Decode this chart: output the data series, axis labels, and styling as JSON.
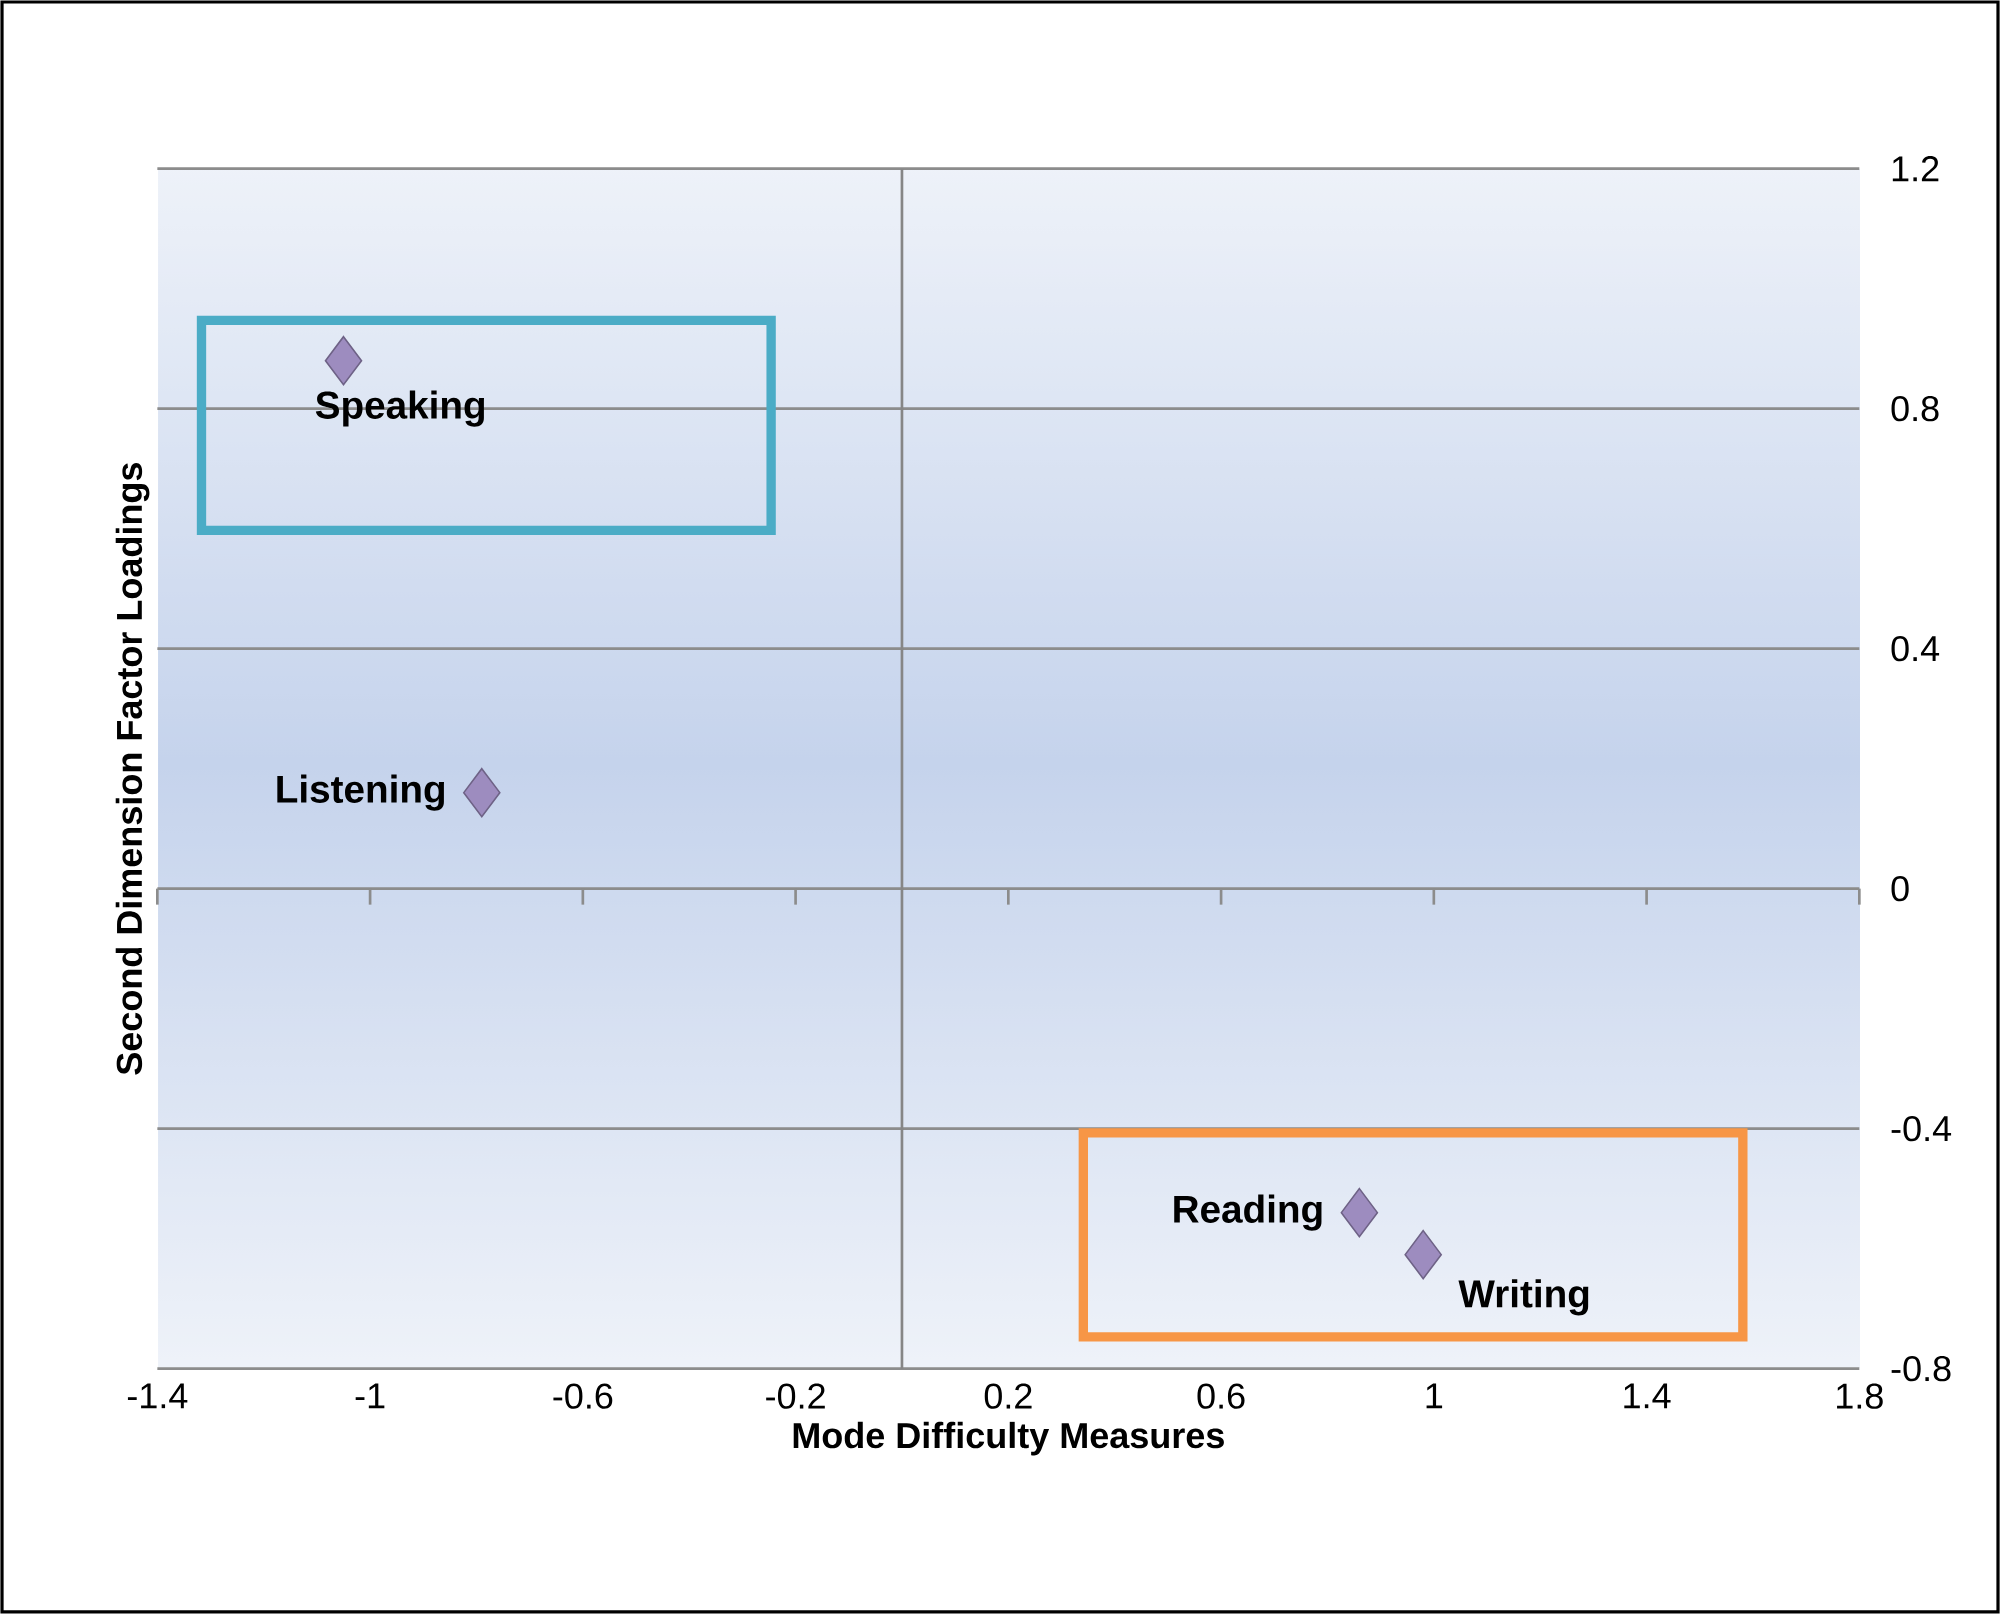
{
  "chart_data": {
    "type": "scatter",
    "xlabel": "Mode Difficulty Measures",
    "ylabel": "Second Dimension Factor Loadings",
    "x": [
      -1.05,
      -0.79,
      0.86,
      0.98
    ],
    "series": [
      {
        "color": "#9d8cbf",
        "values": [
          0.88,
          0.16,
          -0.54,
          -0.61
        ]
      }
    ],
    "marker": "diamond",
    "xlim": [
      -1.4,
      1.8
    ],
    "ylim": [
      -0.8,
      1.2
    ],
    "xticks": [
      -1.4,
      -1,
      -0.6,
      -0.2,
      0.2,
      0.6,
      1,
      1.4,
      1.8
    ],
    "yticks": [
      -0.8,
      -0.4,
      0,
      0.4,
      0.8,
      1.2
    ],
    "grid": "y",
    "ref_lines": [
      {
        "axis": "x",
        "value": 0,
        "color": "#868686"
      }
    ],
    "annotations": [
      {
        "text": "Speaking",
        "x": -1.05,
        "y": 0.88
      },
      {
        "text": "Listening",
        "x": -0.79,
        "y": 0.16
      },
      {
        "text": "Reading",
        "x": 0.86,
        "y": -0.54
      },
      {
        "text": "Writing",
        "x": 0.98,
        "y": -0.61
      }
    ]
  }
}
